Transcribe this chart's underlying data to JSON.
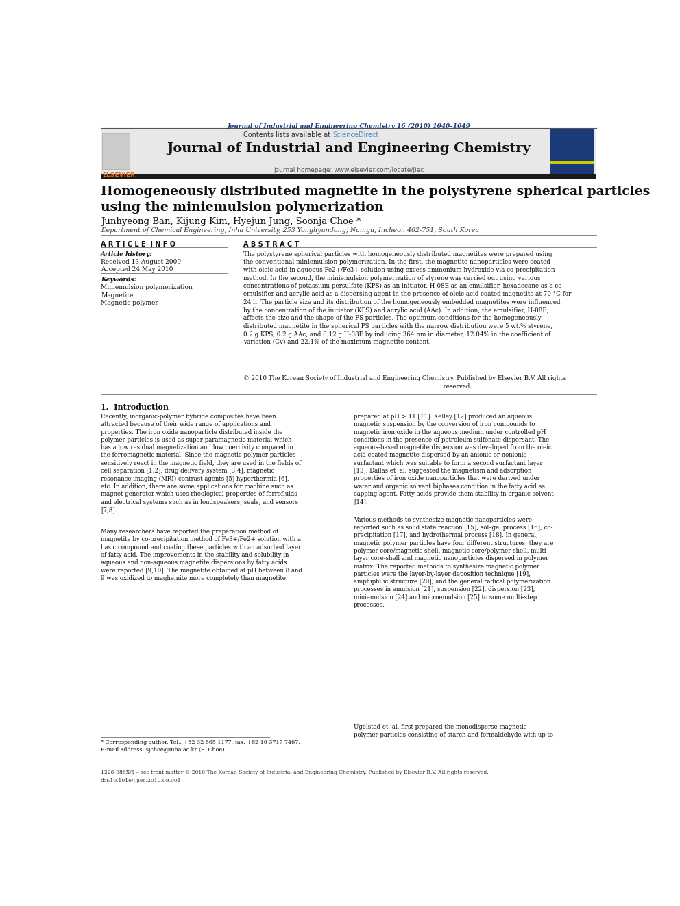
{
  "page_width": 9.92,
  "page_height": 13.23,
  "background_color": "#ffffff",
  "top_journal_line": "Journal of Industrial and Engineering Chemistry 16 (2010) 1040–1049",
  "top_journal_color": "#1a3a7a",
  "sciencedirect_text": "Contents lists available at ",
  "sciencedirect_link": "ScienceDirect",
  "sciencedirect_link_color": "#4a8fcc",
  "journal_name": "Journal of Industrial and Engineering Chemistry",
  "journal_homepage": "journal homepage: www.elsevier.com/locate/jiec",
  "header_bg": "#e8e8e8",
  "thick_bar_color": "#1a1a1a",
  "elsevier_color": "#e07020",
  "paper_title": "Homogeneously distributed magnetite in the polystyrene spherical particles\nusing the miniemulsion polymerization",
  "authors": "Junhyeong Ban, Kijung Kim, Hyejun Jung, Soonja Choe *",
  "affiliation": "Department of Chemical Engineering, Inha University, 253 Yonghyundong, Namgu, Incheon 402-751, South Korea",
  "article_info_title": "A R T I C L E  I N F O",
  "abstract_title": "A B S T R A C T",
  "article_history_label": "Article history:",
  "received": "Received 13 August 2009",
  "accepted": "Accepted 24 May 2010",
  "keywords_label": "Keywords:",
  "keywords": [
    "Miniemulsion polymerization",
    "Magnetite",
    "Magnetic polymer"
  ],
  "abstract_text": "The polystyrene spherical particles with homogeneously distributed magnetites were prepared using\nthe conventional miniemulsion polymerization. In the first, the magnetite nanoparticles were coated\nwith oleic acid in aqueous Fe2+/Fe3+ solution using excess ammonium hydroxide via co-precipitation\nmethod. In the second, the miniemulsion polymerization of styrene was carried out using various\nconcentrations of potassium persulfate (KPS) as an initiator, H-08E as an emulsifier, hexadecane as a co-\nemulsifier and acrylic acid as a dispersing agent in the presence of oleic acid coated magnetite at 70 °C for\n24 h. The particle size and its distribution of the homogeneously embedded magnetites were influenced\nby the concentration of the initiator (KPS) and acrylic acid (AAc). In addition, the emulsifier, H-08E,\naffects the size and the shape of the PS particles. The optimum conditions for the homogeneously\ndistributed magnetite in the spherical PS particles with the narrow distribution were 5 wt.% styrene,\n0.2 g KPS, 0.2 g AAc, and 0.12 g H-08E by inducing 364 nm in diameter, 12.04% in the coefficient of\nvariation (Cv) and 22.1% of the maximum magnetite content.",
  "copyright_text": "© 2010 The Korean Society of Industrial and Engineering Chemistry. Published by Elsevier B.V. All rights\n                                                                                                          reserved.",
  "section1_title": "1.  Introduction",
  "intro_col1_p1": "Recently, inorganic-polymer hybride composites have been\nattracted because of their wide range of applications and\nproperties. The iron oxide nanoparticle distributed inside the\npolymer particles is used as super-paramagnetic material which\nhas a low residual magnetization and low coercivity compared in\nthe ferromagnetic material. Since the magnetic polymer particles\nsensitively react in the magnetic field, they are used in the fields of\ncell separation [1,2], drug delivery system [3,4], magnetic\nresonance imaging (MRI) contrast agents [5] hyperthermia [6],\netc. In addition, there are some applications for machine such as\nmagnet generator which uses rheological properties of ferrofluids\nand electrical systems such as in loudspeakers, seals, and sensors\n[7,8].",
  "intro_col1_p2": "Many researchers have reported the preparation method of\nmagnetite by co-precipitation method of Fe3+/Fe2+ solution with a\nbasic compound and coating these particles with an adsorbed layer\nof fatty acid. The improvements in the stability and solubility in\naqueous and non-aqueous magnetite dispersions by fatty acids\nwere reported [9,10]. The magnetite obtained at pH between 8 and\n9 was oxidized to maghemite more completely than magnetite",
  "intro_col2_p1": "prepared at pH > 11 [11]. Kelley [12] produced an aqueous\nmagnetic suspension by the conversion of iron compounds to\nmagnetic iron oxide in the aqueous medium under controlled pH\nconditions in the presence of petroleum sulfonate dispersant. The\naqueous-based magnetite dispersion was developed from the oleic\nacid coated magnetite dispersed by an anionic or nonionic\nsurfactant which was suitable to form a second surfactant layer\n[13]. Dallas et  al. suggested the magnetism and adsorption\nproperties of iron oxide nanoparticles that were derived under\nwater and organic solvent biphases condition in the fatty acid as\ncapping agent. Fatty acids provide them stability in organic solvent\n[14].",
  "intro_col2_p2": "Various methods to synthesize magnetic nanoparticles were\nreported such as solid state reaction [15], sol–gel process [16], co-\nprecipitation [17], and hydrothermal process [18]. In general,\nmagnetic polymer particles have four different structures; they are\npolymer core/magnetic shell, magnetic core/polymer shell, multi-\nlayer core-shell and magnetic nanoparticles dispersed in polymer\nmatrix. The reported methods to synthesize magnetic polymer\nparticles were the layer-by-layer deposition technique [19],\namphiphilic structure [20], and the general radical polymerization\nprocesses in emulsion [21], suspension [22], dispersion [23],\nminiemulsion [24] and microemulsion [25] to some multi-step\nprocesses.",
  "intro_col2_p3": "Ugelstad et  al. first prepared the monodisperse magnetic\npolymer particles consisting of starch and formaldehyde with up to",
  "footnote_star": "* Corresponding author. Tel.: +82 32 865 1177; fax: +82 10 3717 7467.",
  "footnote_email": "E-mail address: sjchoe@inha.ac.kr (S. Choe).",
  "issn_line": "1226-086X/$ – see front matter © 2010 The Korean Society of Industrial and Engineering Chemistry. Published by Elsevier B.V. All rights reserved.",
  "doi_line": "doi:10.1016/j.jiec.2010.09.001"
}
